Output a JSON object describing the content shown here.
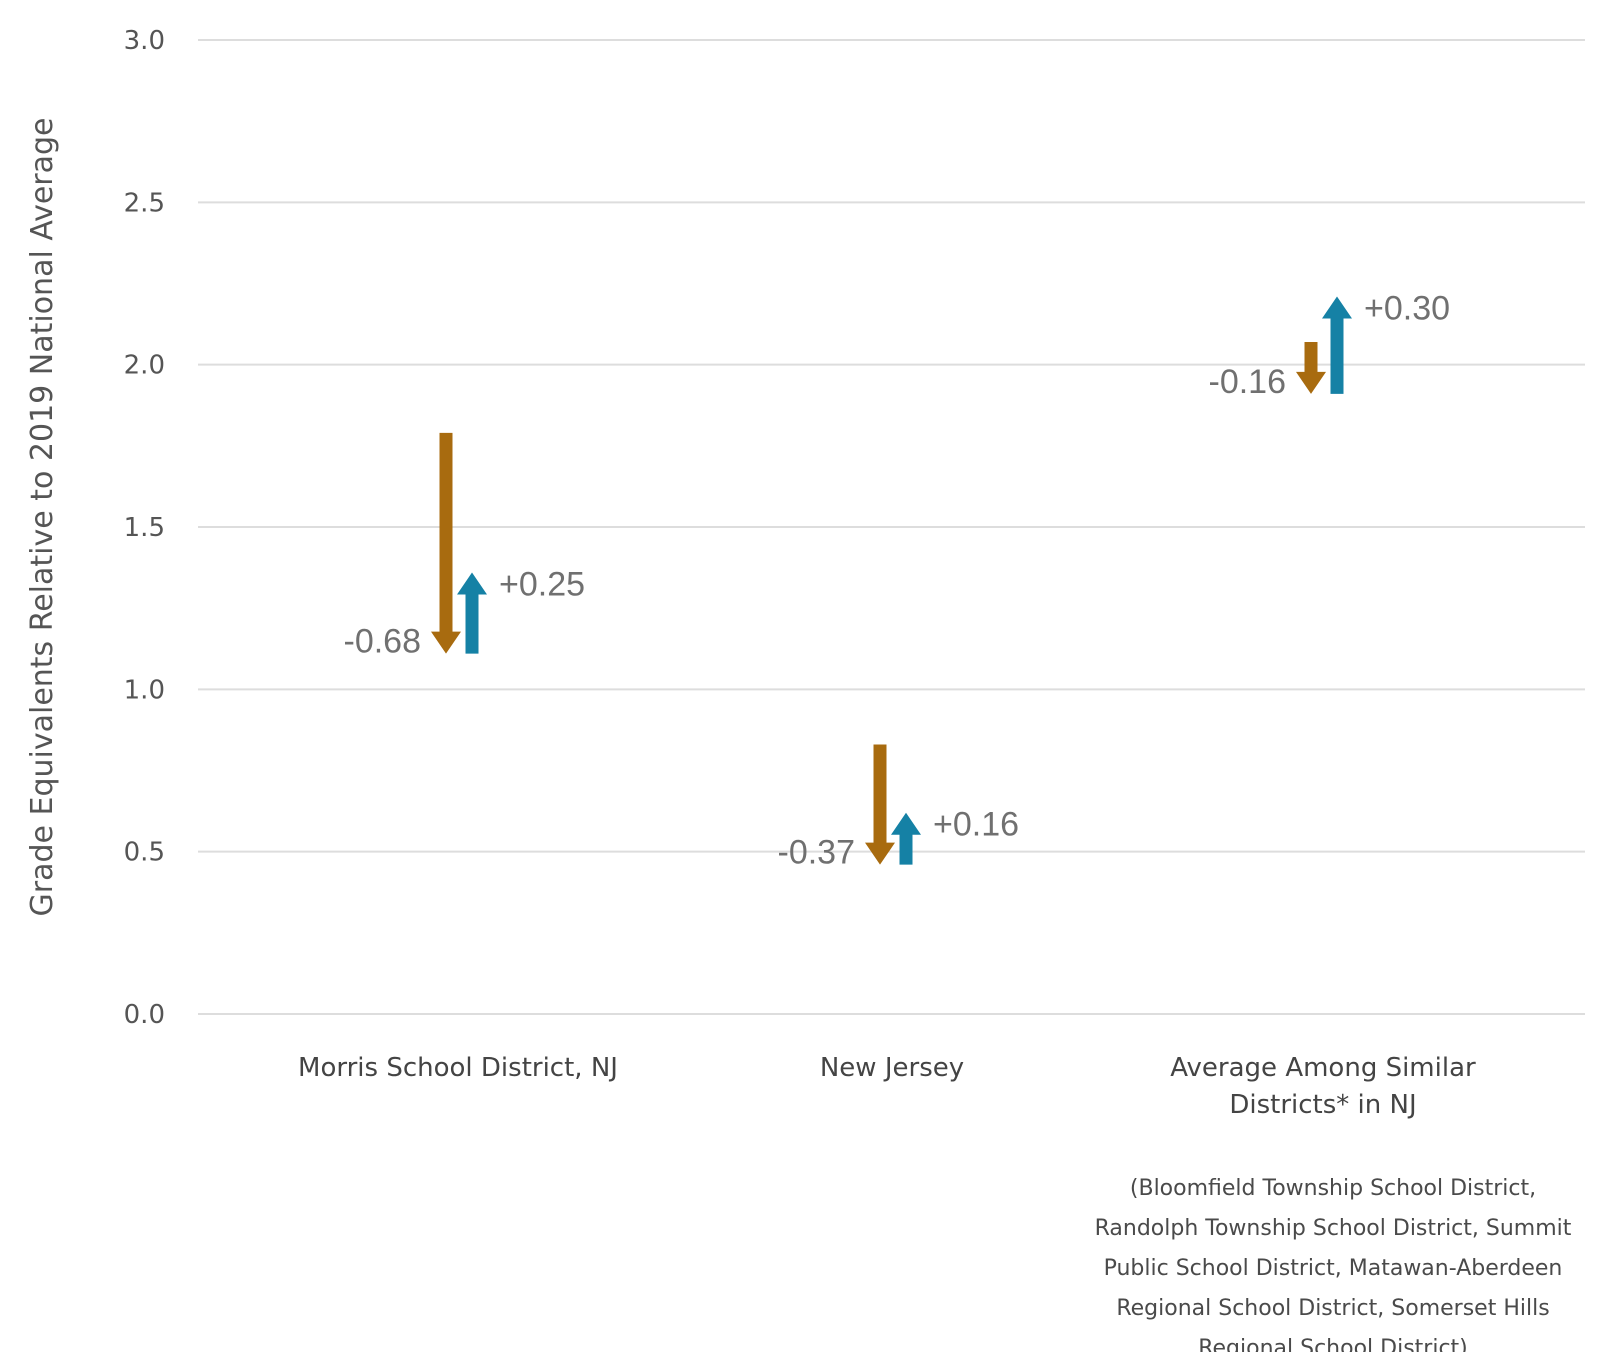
{
  "chart_data": {
    "type": "bar",
    "ylabel": "Grade Equivalents Relative to 2019 National Average",
    "ylim": [
      0,
      3
    ],
    "yticks": [
      "0.0",
      "0.5",
      "1.0",
      "1.5",
      "2.0",
      "2.5",
      "3.0"
    ],
    "grid": true,
    "categories": [
      "Morris School District, NJ",
      "New Jersey",
      "Average Among Similar Districts* in NJ"
    ],
    "category_note": "(Bloomfield Township School District, Randolph Township School District, Summit Public School District, Matawan-Aberdeen Regional School District, Somerset Hills Regional School District)",
    "series": [
      {
        "color": "#a86b0f",
        "direction": "down",
        "start": [
          1.79,
          0.83,
          2.07
        ],
        "end": [
          1.11,
          0.46,
          1.91
        ],
        "labels": [
          "-0.68",
          "-0.37",
          "-0.16"
        ]
      },
      {
        "color": "#1581a5",
        "direction": "up",
        "start": [
          1.11,
          0.46,
          1.91
        ],
        "end": [
          1.36,
          0.62,
          2.21
        ],
        "labels": [
          "+0.25",
          "+0.16",
          "+0.30"
        ]
      }
    ]
  }
}
